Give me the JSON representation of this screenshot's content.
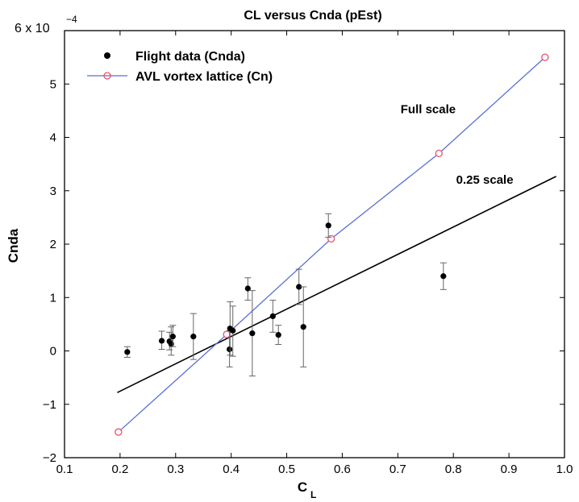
{
  "chart_data": {
    "type": "scatter",
    "title": "CL versus Cnda (pEst)",
    "xlabel": "C",
    "xlabel_sub": "L",
    "ylabel": "Cnda",
    "y_multiplier": "6 x 10",
    "y_multiplier_exp": "−4",
    "xlim": [
      0.1,
      1.0
    ],
    "ylim": [
      -2,
      6
    ],
    "x_ticks": [
      0.1,
      0.2,
      0.3,
      0.4,
      0.5,
      0.6,
      0.7,
      0.8,
      0.9,
      1.0
    ],
    "x_tick_labels": [
      "0.1",
      "0.2",
      "0.3",
      "0.4",
      "0.5",
      "0.6",
      "0.7",
      "0.8",
      "0.9",
      "1.0"
    ],
    "y_ticks": [
      -2,
      -1,
      0,
      1,
      2,
      3,
      4,
      5
    ],
    "y_tick_labels": [
      "−2",
      "−1",
      "0",
      "1",
      "2",
      "3",
      "4",
      "5"
    ],
    "grid": false,
    "legend_position": "top-left",
    "series": [
      {
        "name": "Flight data (Cnda)",
        "kind": "points_with_errorbars",
        "color": "#000000",
        "points": [
          {
            "x": 0.213,
            "y": -0.02,
            "lo": -0.12,
            "hi": 0.08
          },
          {
            "x": 0.275,
            "y": 0.19,
            "lo": 0.03,
            "hi": 0.37
          },
          {
            "x": 0.289,
            "y": 0.18,
            "lo": 0.02,
            "hi": 0.35
          },
          {
            "x": 0.292,
            "y": 0.13,
            "lo": -0.08,
            "hi": 0.45
          },
          {
            "x": 0.295,
            "y": 0.27,
            "lo": 0.08,
            "hi": 0.48
          },
          {
            "x": 0.332,
            "y": 0.27,
            "lo": -0.16,
            "hi": 0.7
          },
          {
            "x": 0.397,
            "y": 0.03,
            "lo": -0.3,
            "hi": 0.38
          },
          {
            "x": 0.398,
            "y": 0.42,
            "lo": -0.08,
            "hi": 0.92
          },
          {
            "x": 0.403,
            "y": 0.38,
            "lo": -0.1,
            "hi": 0.84
          },
          {
            "x": 0.43,
            "y": 1.17,
            "lo": 0.95,
            "hi": 1.37
          },
          {
            "x": 0.438,
            "y": 0.33,
            "lo": -0.47,
            "hi": 1.13
          },
          {
            "x": 0.475,
            "y": 0.65,
            "lo": 0.35,
            "hi": 0.95
          },
          {
            "x": 0.485,
            "y": 0.3,
            "lo": 0.12,
            "hi": 0.48
          },
          {
            "x": 0.522,
            "y": 1.2,
            "lo": 0.87,
            "hi": 1.53
          },
          {
            "x": 0.53,
            "y": 0.45,
            "lo": -0.3,
            "hi": 1.2
          },
          {
            "x": 0.575,
            "y": 2.35,
            "lo": 2.13,
            "hi": 2.57
          },
          {
            "x": 0.782,
            "y": 1.4,
            "lo": 1.15,
            "hi": 1.65
          }
        ]
      },
      {
        "name": "AVL vortex lattice (Cn)",
        "kind": "line_markers",
        "line_color": "#5b6fd6",
        "marker_color": "#e8506a",
        "x": [
          0.197,
          0.392,
          0.58,
          0.774,
          0.965
        ],
        "y": [
          -1.52,
          0.31,
          2.1,
          3.7,
          5.5
        ]
      },
      {
        "name": "",
        "kind": "fit_line",
        "color": "#000000",
        "x": [
          0.195,
          0.985
        ],
        "y": [
          -0.78,
          3.27
        ]
      }
    ],
    "annotations": [
      {
        "text": "Full scale",
        "x": 0.705,
        "y": 4.45
      },
      {
        "text": "0.25 scale",
        "x": 0.805,
        "y": 3.13
      }
    ]
  }
}
